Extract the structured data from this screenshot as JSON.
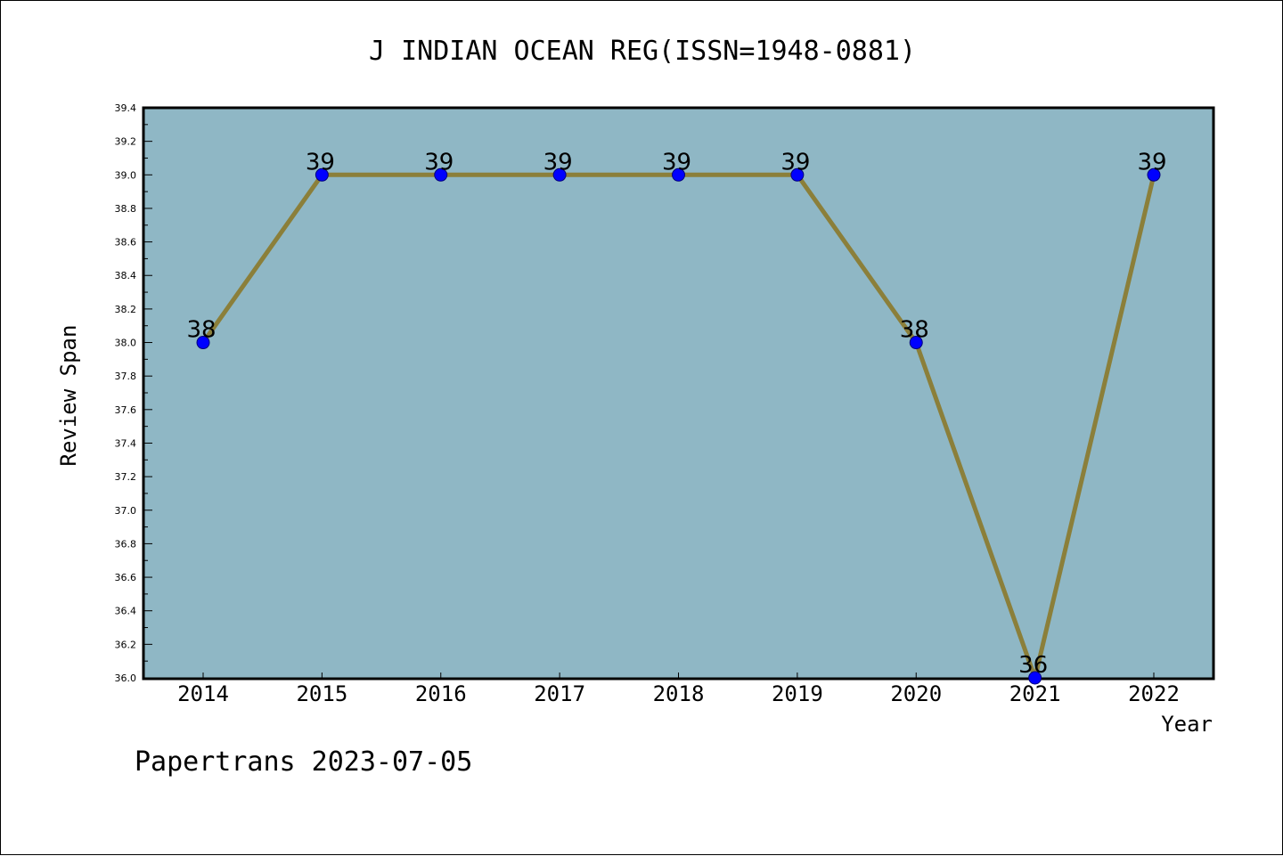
{
  "chart_data": {
    "type": "line",
    "title": "J INDIAN OCEAN REG(ISSN=1948-0881)",
    "xlabel": "Year",
    "ylabel": "Review Span",
    "categories": [
      "2014",
      "2015",
      "2016",
      "2017",
      "2018",
      "2019",
      "2020",
      "2021",
      "2022"
    ],
    "series": [
      {
        "values": [
          38,
          39,
          39,
          39,
          39,
          39,
          38,
          36,
          39
        ]
      }
    ],
    "data_labels": [
      "38",
      "39",
      "39",
      "39",
      "39",
      "39",
      "38",
      "36",
      "39"
    ],
    "ylim": [
      36.0,
      39.4
    ],
    "yticks": [
      "36.0",
      "36.2",
      "36.4",
      "36.6",
      "36.8",
      "37.0",
      "37.2",
      "37.4",
      "37.6",
      "37.8",
      "38.0",
      "38.2",
      "38.4",
      "38.6",
      "38.8",
      "39.0",
      "39.2",
      "39.4"
    ],
    "grid": false,
    "legend": "none",
    "colors": {
      "plot_background": "#8fb7c5",
      "line": "#8b7f3a",
      "marker": "#0000ff"
    }
  },
  "footer": {
    "text": "Papertrans 2023-07-05"
  }
}
